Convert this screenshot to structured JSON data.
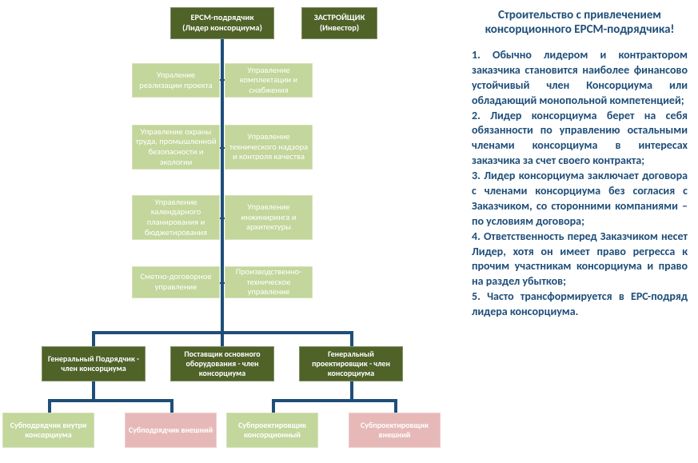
{
  "colors": {
    "dark_green": "#4f6228",
    "light_green": "#c3d69b",
    "pink": "#e6b9b8",
    "line": "#1f4e79",
    "text_blue": "#1f4e79",
    "bg": "#ffffff"
  },
  "diagram": {
    "top": {
      "epcm": {
        "line1": "ЕРСМ-подрядчик",
        "line2": "(Лидер консорциума)"
      },
      "developer": {
        "line1": "ЗАСТРОЙЩИК",
        "line2": "(Инвестор)"
      }
    },
    "pairs": [
      {
        "left": "Упраление реализации проекта",
        "right": "Управление комплектации и снабжения"
      },
      {
        "left": "Управление охраны труда, промышленной безопасности и экологии",
        "right": "Управление технического надзора и контроля качества"
      },
      {
        "left": "Управление календарного планирования и бюджетирования",
        "right": "Управление инжиниринга и архитектуры"
      },
      {
        "left": "Сметно-договорное управление",
        "right": "Производственно-техническое управление"
      }
    ],
    "mid_dark": {
      "a": "Генеральный Подрядчик - член консорциума",
      "b": "Поставщик основного оборудования - член консорциума",
      "c": "Генеральный проектировщик - член консорциума"
    },
    "bottom": {
      "a": "Субподрядчик внутри консорциума",
      "b": "Субподрядчик внешний",
      "c": "Субпроектировщик консорционный",
      "d": "Субпроектировщик внешний"
    }
  },
  "text": {
    "title": "Строительство с привлечением консорционного ЕРСМ-подрядчика!",
    "body": "1. Обычно лидером и контрактором заказчика становится наиболее финансово устойчивый член Консорциума или обладающий монопольной компетенцией;\n2. Лидер консорциума берет на себя обязанности по управлению остальными членами консорциума в интересах заказчика за счет своего контракта;\n3. Лидер консорциума заключает договора с членами консорциума без согласия с Заказчиком, со сторонними компаниями – по условиям договора;\n4. Ответственность перед Заказчиком несет Лидер, хотя он имеет право регресса к прочим участникам консорциума и право на раздел убытков;\n5. Часто трансформируется в ЕРС-подряд лидера консорциума."
  }
}
